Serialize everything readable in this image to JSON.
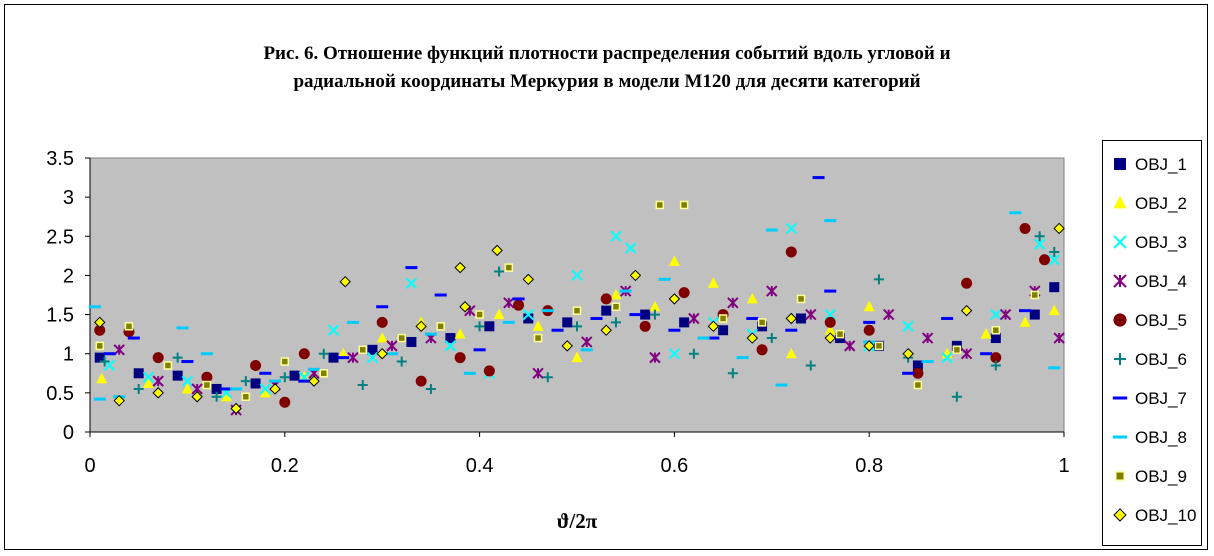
{
  "title_line1": "Рис. 6. Отношение функций плотности распределения событий вдоль угловой и",
  "title_line2": "радиальной координаты Меркурия в модели М120 для десяти категорий",
  "chart_data": {
    "type": "scatter",
    "title": "Рис. 6. Отношение функций плотности распределения событий вдоль угловой и радиальной координаты Меркурия в модели М120 для десяти категорий",
    "xlabel": "ϑ/2π",
    "ylabel": "",
    "xlim": [
      0,
      1
    ],
    "ylim": [
      0,
      3.5
    ],
    "xticks": [
      "0",
      "0.2",
      "0.4",
      "0.6",
      "0.8",
      "1"
    ],
    "yticks": [
      "0",
      "0.5",
      "1",
      "1.5",
      "2",
      "2.5",
      "3",
      "3.5"
    ],
    "grid": false,
    "plot_background": "#c0c0c0",
    "legend_position": "right",
    "series": [
      {
        "name": "OBJ_1",
        "color": "#000080",
        "marker": "square",
        "x": [
          0.01,
          0.05,
          0.09,
          0.13,
          0.17,
          0.21,
          0.25,
          0.29,
          0.33,
          0.37,
          0.41,
          0.45,
          0.49,
          0.53,
          0.57,
          0.61,
          0.65,
          0.69,
          0.73,
          0.77,
          0.81,
          0.85,
          0.89,
          0.93,
          0.97,
          0.99
        ],
        "y": [
          0.95,
          0.75,
          0.72,
          0.55,
          0.62,
          0.72,
          0.95,
          1.05,
          1.15,
          1.2,
          1.35,
          1.45,
          1.4,
          1.55,
          1.5,
          1.4,
          1.3,
          1.35,
          1.45,
          1.2,
          1.1,
          0.85,
          1.1,
          1.2,
          1.5,
          1.85
        ]
      },
      {
        "name": "OBJ_2",
        "color": "#ffff00",
        "marker": "triangle",
        "x": [
          0.012,
          0.06,
          0.1,
          0.14,
          0.18,
          0.22,
          0.26,
          0.3,
          0.34,
          0.38,
          0.42,
          0.46,
          0.5,
          0.54,
          0.58,
          0.6,
          0.64,
          0.68,
          0.72,
          0.76,
          0.8,
          0.84,
          0.88,
          0.92,
          0.96,
          0.99
        ],
        "y": [
          0.68,
          0.62,
          0.55,
          0.45,
          0.5,
          0.7,
          1.0,
          1.2,
          1.4,
          1.25,
          1.5,
          1.35,
          0.95,
          1.75,
          1.6,
          2.18,
          1.9,
          1.7,
          1.0,
          1.3,
          1.6,
          1.0,
          1.0,
          1.25,
          1.4,
          1.55
        ]
      },
      {
        "name": "OBJ_3",
        "color": "#00ffff",
        "marker": "x",
        "x": [
          0.02,
          0.06,
          0.1,
          0.14,
          0.18,
          0.22,
          0.25,
          0.29,
          0.33,
          0.37,
          0.41,
          0.45,
          0.5,
          0.54,
          0.555,
          0.6,
          0.64,
          0.68,
          0.72,
          0.76,
          0.8,
          0.84,
          0.88,
          0.93,
          0.975,
          0.99
        ],
        "y": [
          0.85,
          0.7,
          0.65,
          0.5,
          0.55,
          0.7,
          1.3,
          0.95,
          1.9,
          1.1,
          0.75,
          1.5,
          2.0,
          2.5,
          2.35,
          1.0,
          1.4,
          1.25,
          2.6,
          1.5,
          1.1,
          1.35,
          0.95,
          1.5,
          2.4,
          2.2
        ]
      },
      {
        "name": "OBJ_4",
        "color": "#800080",
        "marker": "asterisk",
        "x": [
          0.03,
          0.07,
          0.11,
          0.15,
          0.19,
          0.23,
          0.27,
          0.31,
          0.35,
          0.39,
          0.43,
          0.46,
          0.51,
          0.55,
          0.58,
          0.62,
          0.66,
          0.7,
          0.74,
          0.78,
          0.82,
          0.86,
          0.9,
          0.94,
          0.97,
          0.995
        ],
        "y": [
          1.05,
          0.65,
          0.55,
          0.28,
          0.6,
          0.75,
          0.95,
          1.1,
          1.2,
          1.55,
          1.65,
          0.75,
          1.15,
          1.8,
          0.95,
          1.45,
          1.65,
          1.8,
          1.5,
          1.1,
          1.5,
          1.2,
          1.0,
          1.5,
          1.8,
          1.2
        ]
      },
      {
        "name": "OBJ_5",
        "color": "#800000",
        "marker": "circle",
        "x": [
          0.01,
          0.04,
          0.07,
          0.12,
          0.17,
          0.2,
          0.22,
          0.3,
          0.34,
          0.38,
          0.41,
          0.44,
          0.47,
          0.53,
          0.57,
          0.61,
          0.65,
          0.69,
          0.72,
          0.76,
          0.8,
          0.85,
          0.9,
          0.93,
          0.96,
          0.98
        ],
        "y": [
          1.3,
          1.28,
          0.95,
          0.7,
          0.85,
          0.38,
          1.0,
          1.4,
          0.65,
          0.95,
          0.78,
          1.62,
          1.55,
          1.7,
          1.35,
          1.78,
          1.5,
          1.05,
          2.3,
          1.4,
          1.3,
          0.75,
          1.9,
          0.95,
          2.6,
          2.2
        ]
      },
      {
        "name": "OBJ_6",
        "color": "#008080",
        "marker": "plus",
        "x": [
          0.015,
          0.05,
          0.09,
          0.13,
          0.16,
          0.2,
          0.24,
          0.28,
          0.32,
          0.35,
          0.4,
          0.42,
          0.47,
          0.5,
          0.54,
          0.58,
          0.62,
          0.66,
          0.7,
          0.74,
          0.81,
          0.84,
          0.89,
          0.93,
          0.975,
          0.99
        ],
        "y": [
          0.9,
          0.55,
          0.95,
          0.45,
          0.65,
          0.7,
          1.0,
          0.6,
          0.9,
          0.55,
          1.35,
          2.05,
          0.7,
          1.35,
          1.4,
          1.5,
          1.0,
          0.75,
          1.2,
          0.85,
          1.95,
          0.95,
          0.45,
          0.85,
          2.5,
          2.3
        ]
      },
      {
        "name": "OBJ_7",
        "color": "#0000ff",
        "marker": "dash",
        "x": [
          0.02,
          0.045,
          0.1,
          0.14,
          0.18,
          0.22,
          0.26,
          0.3,
          0.33,
          0.36,
          0.4,
          0.44,
          0.48,
          0.52,
          0.56,
          0.6,
          0.64,
          0.68,
          0.72,
          0.748,
          0.76,
          0.8,
          0.84,
          0.88,
          0.92,
          0.96
        ],
        "y": [
          1.0,
          1.2,
          0.9,
          0.55,
          0.75,
          0.65,
          0.95,
          1.6,
          2.1,
          1.75,
          1.05,
          1.7,
          1.3,
          1.45,
          1.5,
          1.3,
          1.2,
          1.45,
          1.3,
          3.25,
          1.8,
          1.4,
          0.75,
          1.45,
          1.0,
          1.55
        ]
      },
      {
        "name": "OBJ_8",
        "color": "#00ccff",
        "marker": "dash",
        "x": [
          0.005,
          0.01,
          0.03,
          0.095,
          0.12,
          0.15,
          0.19,
          0.23,
          0.27,
          0.31,
          0.35,
          0.39,
          0.43,
          0.47,
          0.51,
          0.55,
          0.59,
          0.63,
          0.67,
          0.7,
          0.71,
          0.76,
          0.8,
          0.86,
          0.95,
          0.99
        ],
        "y": [
          1.6,
          0.42,
          0.45,
          1.33,
          1.0,
          0.55,
          0.65,
          0.8,
          1.4,
          1.0,
          1.25,
          0.75,
          1.4,
          1.55,
          1.05,
          1.8,
          1.95,
          1.2,
          0.95,
          2.58,
          0.6,
          2.7,
          1.15,
          0.9,
          2.8,
          0.82
        ]
      },
      {
        "name": "OBJ_9",
        "color": "#808000",
        "marker": "small-square",
        "x": [
          0.01,
          0.04,
          0.08,
          0.12,
          0.16,
          0.2,
          0.24,
          0.28,
          0.32,
          0.36,
          0.4,
          0.43,
          0.46,
          0.5,
          0.54,
          0.585,
          0.61,
          0.65,
          0.69,
          0.73,
          0.77,
          0.81,
          0.85,
          0.89,
          0.93,
          0.97
        ],
        "y": [
          1.1,
          1.35,
          0.85,
          0.6,
          0.45,
          0.9,
          0.75,
          1.05,
          1.2,
          1.35,
          1.5,
          2.1,
          1.2,
          1.55,
          1.6,
          2.9,
          2.9,
          1.45,
          1.4,
          1.7,
          1.25,
          1.1,
          0.6,
          1.05,
          1.3,
          1.75
        ]
      },
      {
        "name": "OBJ_10",
        "color": "#ffff00",
        "marker": "diamond",
        "x": [
          0.01,
          0.03,
          0.07,
          0.11,
          0.15,
          0.19,
          0.23,
          0.262,
          0.3,
          0.34,
          0.38,
          0.385,
          0.418,
          0.45,
          0.49,
          0.53,
          0.56,
          0.6,
          0.64,
          0.68,
          0.72,
          0.76,
          0.8,
          0.84,
          0.9,
          0.995
        ],
        "y": [
          1.4,
          0.4,
          0.5,
          0.45,
          0.3,
          0.55,
          0.65,
          1.92,
          1.0,
          1.35,
          2.1,
          1.6,
          2.32,
          1.95,
          1.1,
          1.3,
          2.0,
          1.7,
          1.35,
          1.2,
          1.45,
          1.2,
          1.1,
          1.0,
          1.55,
          2.6
        ]
      }
    ]
  }
}
